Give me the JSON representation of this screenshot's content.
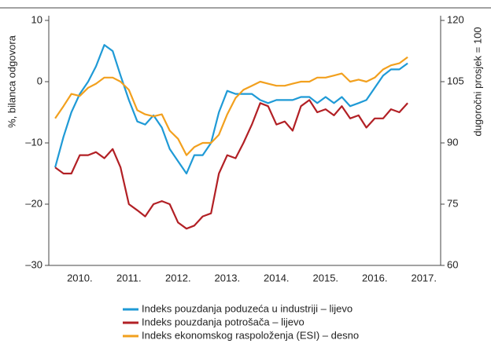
{
  "chart_data": {
    "type": "line",
    "y_label": "%, bilanca odgovora",
    "y2_label": "dugoročni prosjek = 100",
    "x": [
      2010.0,
      2010.17,
      2010.33,
      2010.5,
      2010.67,
      2010.83,
      2011.0,
      2011.17,
      2011.33,
      2011.5,
      2011.67,
      2011.83,
      2012.0,
      2012.17,
      2012.33,
      2012.5,
      2012.67,
      2012.83,
      2013.0,
      2013.17,
      2013.33,
      2013.5,
      2013.67,
      2013.83,
      2014.0,
      2014.17,
      2014.33,
      2014.5,
      2014.67,
      2014.83,
      2015.0,
      2015.17,
      2015.33,
      2015.5,
      2015.67,
      2015.83,
      2016.0,
      2016.17,
      2016.33,
      2016.5,
      2016.67,
      2016.83,
      2017.0,
      2017.17
    ],
    "xlim": [
      2009.87,
      2017.84
    ],
    "xticks": [
      {
        "value": 2010.5,
        "label": "2010."
      },
      {
        "value": 2011.5,
        "label": "2011."
      },
      {
        "value": 2012.5,
        "label": "2012."
      },
      {
        "value": 2013.5,
        "label": "2013."
      },
      {
        "value": 2014.5,
        "label": "2014."
      },
      {
        "value": 2015.5,
        "label": "2015."
      },
      {
        "value": 2016.5,
        "label": "2016."
      },
      {
        "value": 2017.5,
        "label": "2017."
      }
    ],
    "ylim": [
      -30,
      10
    ],
    "yticks": [
      {
        "value": -30,
        "label": "–30"
      },
      {
        "value": -20,
        "label": "–20"
      },
      {
        "value": -10,
        "label": "–10"
      },
      0,
      10
    ],
    "y2lim": [
      60,
      120
    ],
    "y2ticks": [
      60,
      75,
      90,
      105,
      120
    ],
    "series": [
      {
        "name": "Indeks pouzdanja poduzeća u industriji – lijevo",
        "color": "#1f9ad6",
        "values": [
          -14,
          -9,
          -5,
          -2,
          0,
          2.5,
          6,
          5,
          1,
          -3,
          -6.5,
          -7,
          -5.5,
          -7.5,
          -11,
          -13,
          -15,
          -12,
          -12,
          -10,
          -5,
          -1.5,
          -2,
          -2,
          -2,
          -3,
          -3.5,
          -3,
          -3,
          -3,
          -2.5,
          -2.5,
          -3.5,
          -2.5,
          -3.5,
          -2.5,
          -4,
          -3.5,
          -3,
          -1,
          1,
          2,
          2,
          3
        ]
      },
      {
        "name": "Indeks pouzdanja potrošača – lijevo",
        "color": "#b22025",
        "values": [
          -14,
          -15,
          -15,
          -12,
          -12,
          -11.5,
          -12.5,
          -11,
          -14,
          -20,
          -21,
          -22,
          -20,
          -19.5,
          -20,
          -23,
          -24,
          -23.5,
          -22,
          -21.5,
          -15,
          -12,
          -12.5,
          -10,
          -7,
          -3.5,
          -4,
          -7,
          -6.5,
          -8,
          -4,
          -3,
          -5,
          -4.5,
          -5.5,
          -4,
          -6,
          -5.5,
          -7.5,
          -6,
          -6,
          -4.5,
          -5,
          -3.5
        ]
      },
      {
        "name": "Indeks ekonomskog raspoloženja (ESI) – desno",
        "color": "#f2a01e",
        "axis": "y2",
        "values": [
          96,
          99,
          102,
          101.5,
          103.5,
          104.5,
          106,
          106,
          105,
          103,
          98,
          97,
          96.5,
          97,
          93,
          91,
          87,
          89,
          90,
          90,
          92,
          97,
          101,
          103,
          104,
          105,
          104.5,
          104,
          104,
          104.5,
          105,
          105,
          106,
          106,
          106.5,
          107,
          105,
          105.5,
          105,
          106,
          108,
          109,
          109.5,
          111
        ]
      }
    ]
  }
}
